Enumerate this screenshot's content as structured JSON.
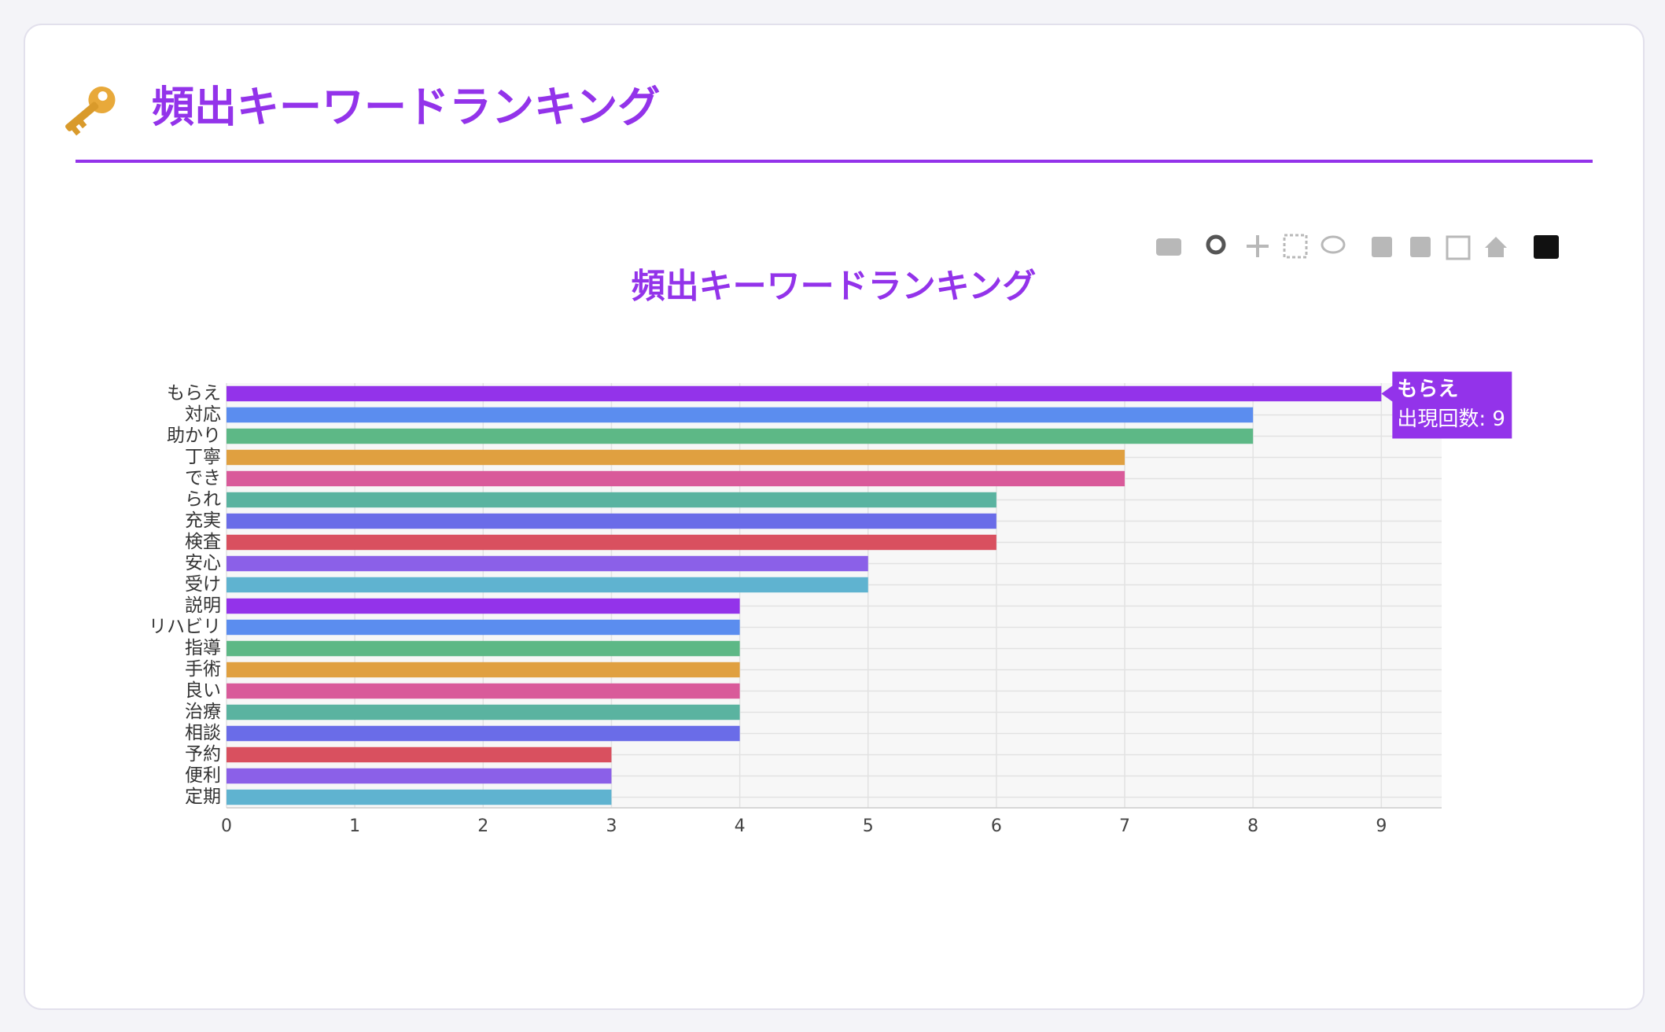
{
  "header": {
    "title": "頻出キーワードランキング"
  },
  "chart_data": {
    "type": "bar",
    "orientation": "horizontal",
    "title": "頻出キーワードランキング",
    "categories": [
      "もらえ",
      "対応",
      "助かり",
      "丁寧",
      "でき",
      "られ",
      "充実",
      "検査",
      "安心",
      "受け",
      "説明",
      "リハビリ",
      "指導",
      "手術",
      "良い",
      "治療",
      "相談",
      "予約",
      "便利",
      "定期"
    ],
    "values": [
      9,
      8,
      8,
      7,
      7,
      6,
      6,
      6,
      5,
      5,
      4,
      4,
      4,
      4,
      4,
      4,
      4,
      3,
      3,
      3
    ],
    "colors": [
      "#9333ea",
      "#5b8def",
      "#5db886",
      "#e0a040",
      "#d95a9a",
      "#5ab3a0",
      "#6a6ce8",
      "#d9505f",
      "#8b60e8",
      "#5fb3d0",
      "#9333ea",
      "#5b8def",
      "#5db886",
      "#e0a040",
      "#d95a9a",
      "#5ab3a0",
      "#6a6ce8",
      "#d9505f",
      "#8b60e8",
      "#5fb3d0"
    ],
    "xlim": [
      0,
      9.47
    ],
    "xticks": [
      0,
      1,
      2,
      3,
      4,
      5,
      6,
      7,
      8,
      9
    ],
    "grid": true,
    "tooltip": {
      "title": "もらえ",
      "text": "出現回数: 9",
      "color": "#9333ea"
    }
  }
}
